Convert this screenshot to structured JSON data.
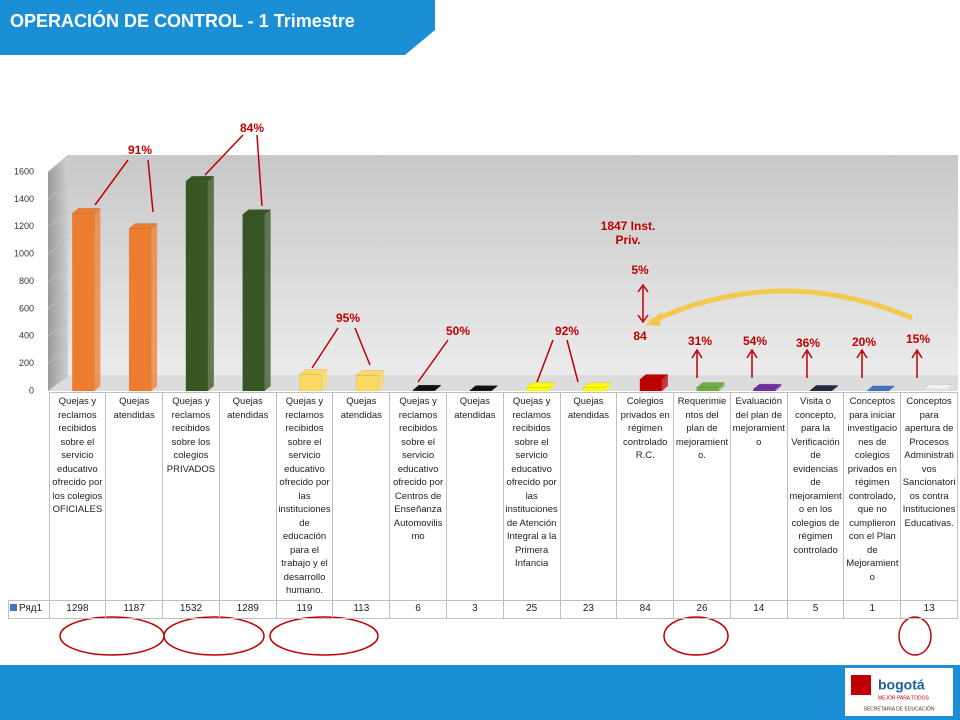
{
  "header": {
    "title": "OPERACIÓN DE CONTROL - 1 Trimestre"
  },
  "chart_data": {
    "type": "bar",
    "categories": [
      "Quejas y reclamos recibidos sobre el servicio educativo ofrecido por los colegios OFICIALES",
      "Quejas atendidas",
      "Quejas y reclamos recibidos sobre los colegios PRIVADOS",
      "Quejas atendidas",
      "Quejas y reclamos recibidos sobre el servicio educativo ofrecido por las instituciones de educación para el trabajo y el desarrollo humano.",
      "Quejas atendidas",
      "Quejas y reclamos recibidos sobre el servicio educativo ofrecido por Centros de Enseñanza Automovilismo",
      "Quejas atendidas",
      "Quejas y reclamos recibidos sobre el servicio educativo ofrecido por las instituciones de Atención Integral a la Primera Infancia",
      "Quejas atendidas",
      "Colegios privados en régimen controlado R.C.",
      "Requerimientos del plan de mejoramiento.",
      "Evaluación del plan de mejoramiento",
      "Visita o concepto, para la Verificación de evidencias de mejoramiento en los colegios de régimen controlado",
      "Conceptos para iniciar investigaciones de colegios privados en régimen controlado, que no cumplieron con el Plan de Mejoramiento",
      "Conceptos para apertura de Procesos Administrativos Sancionatorios contra Instituciones Educativas."
    ],
    "series": [
      {
        "name": "Ряд1",
        "color": "#4472c4",
        "values": [
          1298,
          1187,
          1532,
          1289,
          119,
          113,
          6,
          3,
          25,
          23,
          84,
          26,
          14,
          5,
          1,
          13
        ],
        "colors": [
          "#ed7d31",
          "#ed7d31",
          "#375623",
          "#375623",
          "#ffd966",
          "#ffd966",
          "#111111",
          "#111111",
          "#ffff00",
          "#ffff00",
          "#c00000",
          "#70ad47",
          "#7030a0",
          "#1f2a44",
          "#4472c4",
          "#f2f2f2"
        ]
      }
    ],
    "ylim": [
      0,
      1600
    ],
    "yticks": [
      0,
      200,
      400,
      600,
      800,
      1000,
      1200,
      1400,
      1600
    ],
    "annotations": [
      "91%",
      "84%",
      "95%",
      "50%",
      "92%",
      "1847 Inst. Priv.",
      "5%",
      "84",
      "31%",
      "54%",
      "36%",
      "20%",
      "15%"
    ]
  },
  "footer": {
    "logo": "bogotá",
    "slogan": "MEJOR PARA TODOS",
    "office": "SECRETARÍA DE EDUCACIÓN"
  }
}
